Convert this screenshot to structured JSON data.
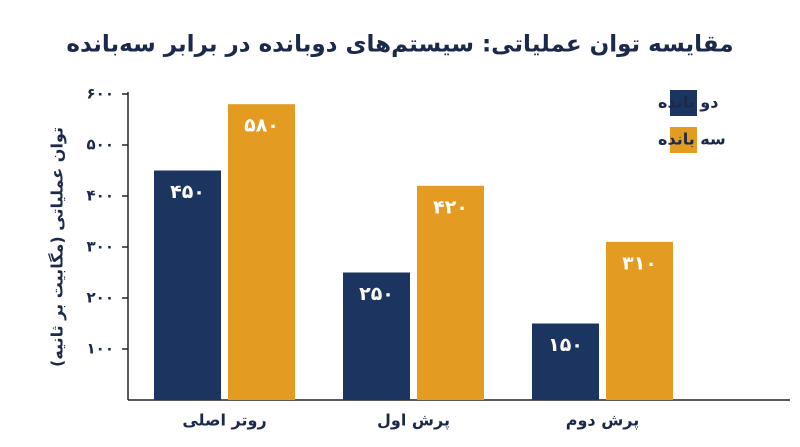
{
  "chart_data": {
    "type": "bar",
    "title": "مقایسه توان عملیاتی: سیستم‌های دوبانده در برابر سه‌بانده",
    "y_label": "توان عملیاتی (مگابیت بر ثانیه)",
    "categories": [
      "روتر اصلی",
      "پرش اول",
      "پرش دوم"
    ],
    "series": [
      {
        "name": "دو بانده",
        "color": "#1b3560",
        "values": [
          450,
          250,
          150
        ],
        "value_labels": [
          "۴۵۰",
          "۲۵۰",
          "۱۵۰"
        ]
      },
      {
        "name": "سه بانده",
        "color": "#e39b22",
        "values": [
          580,
          420,
          310
        ],
        "value_labels": [
          "۵۸۰",
          "۴۲۰",
          "۳۱۰"
        ]
      }
    ],
    "ylim": [
      0,
      600
    ],
    "yticks": [
      {
        "value": 100,
        "label": "۱۰۰"
      },
      {
        "value": 200,
        "label": "۲۰۰"
      },
      {
        "value": 300,
        "label": "۳۰۰"
      },
      {
        "value": 400,
        "label": "۴۰۰"
      },
      {
        "value": 500,
        "label": "۵۰۰"
      },
      {
        "value": 600,
        "label": "۶۰۰"
      }
    ],
    "grid": false
  }
}
